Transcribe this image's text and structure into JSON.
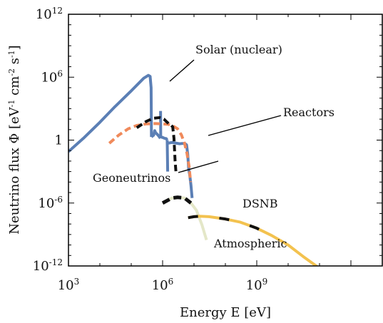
{
  "chart_data": {
    "type": "line",
    "title": "",
    "xlabel": "Energy E [eV]",
    "ylabel_parts": [
      "Neutrino flux Φ [eV",
      "-1",
      " cm",
      "-2",
      " s",
      "-1",
      "]"
    ],
    "xscale": "log",
    "yscale": "log",
    "xlim": [
      1000,
      10000000000000.0
    ],
    "ylim": [
      1e-12,
      1000000000000.0
    ],
    "grid": false,
    "x_ticks": [
      {
        "value": 1000,
        "base": "10",
        "exp": "3"
      },
      {
        "value": 1000000,
        "base": "10",
        "exp": "6"
      },
      {
        "value": 1000000000,
        "base": "10",
        "exp": "9"
      }
    ],
    "y_ticks": [
      {
        "value": 1e-12,
        "base": "10",
        "exp": "-12"
      },
      {
        "value": 1e-06,
        "base": "10",
        "exp": "-6"
      },
      {
        "value": 1,
        "base": "1",
        "exp": ""
      },
      {
        "value": 1000000.0,
        "base": "10",
        "exp": "6"
      },
      {
        "value": 1000000000000.0,
        "base": "10",
        "exp": "12"
      }
    ],
    "series": [
      {
        "name": "Solar (nuclear)",
        "color": "#5b7fb5",
        "style": "solid",
        "segments": [
          [
            [
              1000,
              0.08
            ],
            [
              3000,
              1.5
            ],
            [
              10000,
              50
            ],
            [
              30000,
              1500
            ],
            [
              100000,
              50000
            ],
            [
              250000,
              800000
            ],
            [
              350000,
              1500000
            ],
            [
              400000,
              1200000
            ],
            [
              430000,
              100000
            ],
            [
              440000,
              2
            ]
          ],
          [
            [
              440000,
              2
            ],
            [
              480000,
              2.5
            ],
            [
              520000,
              3
            ],
            [
              560000,
              8
            ],
            [
              600000,
              5
            ],
            [
              650000,
              4
            ],
            [
              750000,
              2.5
            ],
            [
              850000,
              1.5
            ]
          ],
          [
            [
              860000,
              600
            ],
            [
              870000,
              2
            ]
          ],
          [
            [
              870000,
              2
            ],
            [
              1000000,
              1.8
            ],
            [
              1150000,
              1.5
            ],
            [
              1300000,
              1.4
            ],
            [
              1400000,
              1
            ]
          ],
          [
            [
              1400000,
              1
            ],
            [
              1450000,
              0.001
            ]
          ],
          [
            [
              1450000,
              0.5
            ],
            [
              2000000,
              0.6
            ],
            [
              3500000,
              0.45
            ],
            [
              5000000,
              0.5
            ],
            [
              5800000,
              0.35
            ],
            [
              6300000,
              0.05
            ],
            [
              6800000,
              0.0015
            ],
            [
              7300000,
              0.0005
            ],
            [
              8000000,
              5e-05
            ],
            [
              8700000,
              3e-06
            ]
          ]
        ]
      },
      {
        "name": "Reactors",
        "color": "#f08a5b",
        "style": "dashed",
        "segments": [
          [
            [
              20000,
              0.5
            ],
            [
              40000,
              3
            ],
            [
              80000,
              12
            ],
            [
              150000,
              25
            ],
            [
              300000,
              35
            ],
            [
              600000,
              38
            ],
            [
              1000000,
              35
            ],
            [
              1500000,
              32
            ],
            [
              2000000,
              25
            ],
            [
              3000000,
              12
            ],
            [
              4000000,
              3
            ],
            [
              5000000,
              0.5
            ],
            [
              6000000,
              0.05
            ],
            [
              7000000,
              0.003
            ],
            [
              7800000,
              0.0001
            ]
          ]
        ]
      },
      {
        "name": "Geoneutrinos",
        "color": "#111111",
        "style": "dashed",
        "segments": [
          [
            [
              150000,
              15
            ],
            [
              300000,
              60
            ],
            [
              500000,
              120
            ],
            [
              800000,
              140
            ],
            [
              1100000,
              100
            ],
            [
              1400000,
              50
            ],
            [
              1700000,
              30
            ],
            [
              1900000,
              25
            ],
            [
              2100000,
              18
            ],
            [
              2300000,
              1.5
            ],
            [
              2500000,
              0.01
            ],
            [
              2700000,
              0.0005
            ]
          ]
        ]
      },
      {
        "name": "DSNB",
        "color": "#111111",
        "style": "dashed-fade",
        "segments": [
          [
            [
              1000000,
              1e-06
            ],
            [
              2000000,
              3e-06
            ],
            [
              3000000,
              3.5e-06
            ],
            [
              5000000,
              3e-06
            ],
            [
              8000000,
              1e-06
            ],
            [
              12000000,
              2e-07
            ],
            [
              18000000,
              8e-09
            ],
            [
              25000000,
              3e-10
            ]
          ]
        ]
      },
      {
        "name": "Atmospheric",
        "color": "#f3c24f",
        "style": "dashed-then-solid",
        "segments": [
          [
            [
              6500000,
              4e-08
            ],
            [
              10000000,
              5e-08
            ],
            [
              15000000,
              5.5e-08
            ],
            [
              30000000,
              5e-08
            ],
            [
              100000000,
              3e-08
            ],
            [
              300000000,
              1.5e-08
            ],
            [
              1000000000,
              4e-09
            ],
            [
              3000000000,
              8e-10
            ],
            [
              10000000000,
              1e-10
            ],
            [
              30000000000,
              8e-12
            ],
            [
              100000000000,
              6e-13
            ],
            [
              200000000000,
              1e-13
            ]
          ]
        ]
      }
    ],
    "annotations": [
      {
        "text": "Solar (nuclear)",
        "arrow_to": [
          400000,
          1200000
        ]
      },
      {
        "text": "Reactors",
        "arrow_to": [
          2500000,
          8
        ]
      },
      {
        "text": "Geoneutrinos",
        "arrow_to": [
          3000000,
          0.02
        ]
      },
      {
        "text": "DSNB",
        "arrow_to": null
      },
      {
        "text": "Atmospheric",
        "arrow_to": null
      }
    ]
  }
}
